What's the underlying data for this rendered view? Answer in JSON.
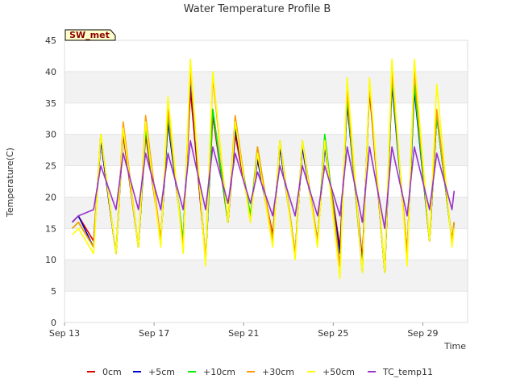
{
  "chart_data": {
    "type": "line",
    "title": "Water Temperature Profile B",
    "xlabel": "Time",
    "ylabel": "Temperature(C)",
    "badge": "SW_met",
    "x_ticks": [
      "Sep 13",
      "Sep 17",
      "Sep 21",
      "Sep 25",
      "Sep 29"
    ],
    "x_tick_days": [
      13,
      17,
      21,
      25,
      29
    ],
    "xlim_days": [
      13,
      31
    ],
    "y_ticks": [
      0,
      5,
      10,
      15,
      20,
      25,
      30,
      35,
      40,
      45
    ],
    "ylim": [
      0,
      45
    ],
    "grid": "horizontal bands",
    "legend_position": "bottom",
    "daily_extremes": {
      "days": [
        13,
        14,
        15,
        16,
        17,
        18,
        19,
        20,
        21,
        22,
        23,
        24,
        25,
        26,
        27,
        28,
        29,
        30
      ],
      "series_min_max": {
        "0cm": [
          [
            11,
            17
          ],
          [
            13,
            29
          ],
          [
            11,
            30
          ],
          [
            12,
            30
          ],
          [
            13,
            32
          ],
          [
            13,
            37
          ],
          [
            10,
            33
          ],
          [
            16,
            30
          ],
          [
            17,
            26
          ],
          [
            14,
            28
          ],
          [
            11,
            28
          ],
          [
            13,
            28
          ],
          [
            12,
            35
          ],
          [
            10,
            37
          ],
          [
            8,
            39
          ],
          [
            11,
            38
          ],
          [
            13,
            33
          ],
          [
            13,
            24
          ]
        ],
        "+5cm": [
          [
            10,
            17
          ],
          [
            12,
            29
          ],
          [
            11,
            31
          ],
          [
            12,
            31
          ],
          [
            13,
            32
          ],
          [
            13,
            39
          ],
          [
            10,
            34
          ],
          [
            16,
            31
          ],
          [
            17,
            26
          ],
          [
            13,
            28
          ],
          [
            11,
            28
          ],
          [
            13,
            28
          ],
          [
            11,
            35
          ],
          [
            9,
            38
          ],
          [
            8,
            38
          ],
          [
            11,
            37
          ],
          [
            13,
            33
          ],
          [
            13,
            25
          ]
        ],
        "+10cm": [
          [
            8,
            16
          ],
          [
            12,
            30
          ],
          [
            11,
            31
          ],
          [
            12,
            31
          ],
          [
            13,
            33
          ],
          [
            13,
            40
          ],
          [
            10,
            34
          ],
          [
            16,
            32
          ],
          [
            17,
            28
          ],
          [
            13,
            29
          ],
          [
            11,
            29
          ],
          [
            13,
            30
          ],
          [
            9,
            36
          ],
          [
            8,
            38
          ],
          [
            8,
            39
          ],
          [
            11,
            38
          ],
          [
            13,
            33
          ],
          [
            13,
            26
          ]
        ],
        "+30cm": [
          [
            7,
            16
          ],
          [
            12,
            30
          ],
          [
            11,
            32
          ],
          [
            12,
            33
          ],
          [
            13,
            34
          ],
          [
            12,
            40
          ],
          [
            10,
            39
          ],
          [
            16,
            33
          ],
          [
            16,
            28
          ],
          [
            13,
            29
          ],
          [
            11,
            29
          ],
          [
            13,
            29
          ],
          [
            9,
            37
          ],
          [
            8,
            38
          ],
          [
            8,
            40
          ],
          [
            11,
            40
          ],
          [
            13,
            34
          ],
          [
            13,
            27
          ]
        ],
        "+50cm": [
          [
            6,
            15
          ],
          [
            11,
            30
          ],
          [
            11,
            31
          ],
          [
            12,
            32
          ],
          [
            12,
            36
          ],
          [
            11,
            42
          ],
          [
            9,
            40
          ],
          [
            16,
            32
          ],
          [
            16,
            27
          ],
          [
            12,
            29
          ],
          [
            10,
            29
          ],
          [
            12,
            29
          ],
          [
            7,
            39
          ],
          [
            8,
            39
          ],
          [
            8,
            42
          ],
          [
            9,
            42
          ],
          [
            13,
            38
          ],
          [
            12,
            31
          ]
        ],
        "TC_temp11": [
          [
            16,
            17
          ],
          [
            18,
            25
          ],
          [
            18,
            27
          ],
          [
            18,
            27
          ],
          [
            18,
            27
          ],
          [
            18,
            29
          ],
          [
            18,
            28
          ],
          [
            19,
            27
          ],
          [
            19,
            24
          ],
          [
            17,
            25
          ],
          [
            17,
            25
          ],
          [
            17,
            25
          ],
          [
            17,
            28
          ],
          [
            16,
            28
          ],
          [
            15,
            28
          ],
          [
            17,
            28
          ],
          [
            18,
            27
          ],
          [
            18,
            25
          ]
        ]
      }
    },
    "series": [
      {
        "name": "0cm",
        "color": "#dd0000"
      },
      {
        "name": "+5cm",
        "color": "#0000cc"
      },
      {
        "name": "+10cm",
        "color": "#00ee00"
      },
      {
        "name": "+30cm",
        "color": "#ff9900"
      },
      {
        "name": "+50cm",
        "color": "#ffff00"
      },
      {
        "name": "TC_temp11",
        "color": "#9933cc"
      }
    ]
  }
}
